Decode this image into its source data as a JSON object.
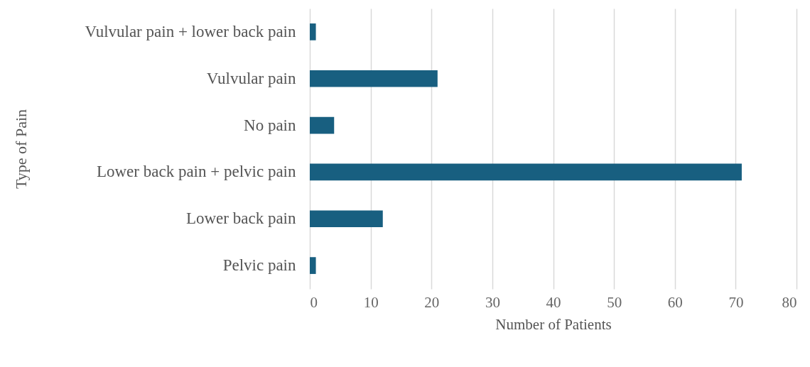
{
  "chart_data": {
    "type": "bar",
    "orientation": "horizontal",
    "xlabel": "Number of Patients",
    "ylabel": "Type of Pain",
    "categories": [
      "Vulvular pain + lower back pain",
      "Vulvular pain",
      "No pain",
      "Lower back pain + pelvic pain",
      "Lower back pain",
      "Pelvic pain"
    ],
    "values": [
      1,
      21,
      4,
      71,
      12,
      1
    ],
    "color": "#185f80",
    "xlim": [
      0,
      80
    ],
    "xticks": [
      0,
      10,
      20,
      30,
      40,
      50,
      60,
      70,
      80
    ],
    "grid": "x"
  }
}
